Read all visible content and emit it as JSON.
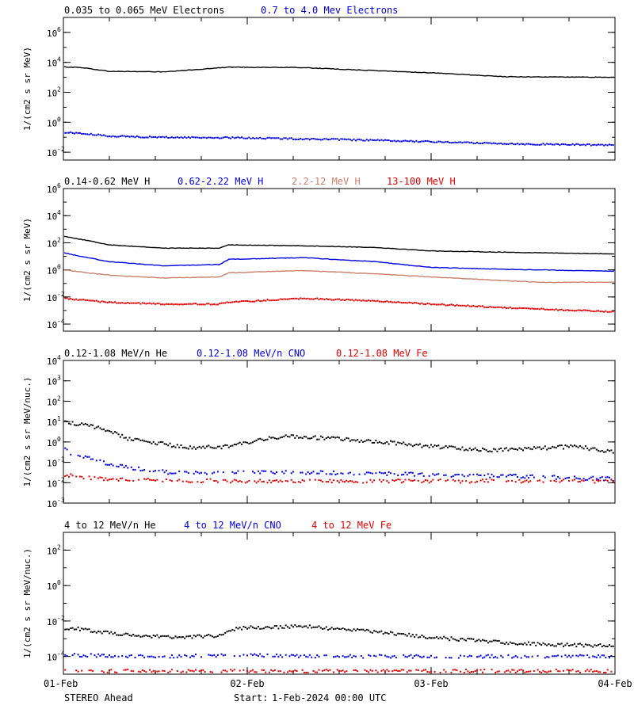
{
  "colors": {
    "black": "#000000",
    "blue": "#0000dd",
    "tan": "#c8806a",
    "red": "#dd0000"
  },
  "footer": {
    "spacecraft": "STEREO Ahead",
    "start_label": "Start:",
    "start_value": "1-Feb-2024 00:00 UTC"
  },
  "x_axis": {
    "type": "time",
    "ticks": [
      "01-Feb",
      "02-Feb",
      "03-Feb",
      "04-Feb"
    ],
    "range": [
      "2024-02-01",
      "2024-02-04"
    ]
  },
  "chart_data": [
    {
      "type": "scatter",
      "ylabel": "1/(cm2 s sr MeV)",
      "yscale": "log",
      "ylim": [
        0.003,
        10000000
      ],
      "yticks": [
        {
          "b": "10",
          "e": "-2",
          "v": 0.01
        },
        {
          "b": "10",
          "e": "0",
          "v": 1
        },
        {
          "b": "10",
          "e": "2",
          "v": 100
        },
        {
          "b": "10",
          "e": "4",
          "v": 10000
        },
        {
          "b": "10",
          "e": "6",
          "v": 1000000
        }
      ],
      "series": [
        {
          "name": "0.035 to 0.065 MeV Electrons",
          "color": "#000000",
          "style": "line",
          "x": [
            0,
            0.1,
            0.25,
            0.45,
            0.55,
            0.9,
            1.3,
            1.5,
            2.0,
            2.4,
            3.0
          ],
          "y": [
            5000,
            4500,
            2500,
            2400,
            2300,
            4800,
            4500,
            3500,
            2000,
            1100,
            1000
          ]
        },
        {
          "name": "0.7 to 4.0 Mev Electrons",
          "color": "#0000dd",
          "style": "scatter",
          "x": [
            0,
            0.05,
            0.25,
            0.5,
            1.0,
            1.5,
            2.0,
            2.5,
            3.0
          ],
          "y": [
            0.2,
            0.2,
            0.12,
            0.1,
            0.09,
            0.07,
            0.05,
            0.035,
            0.03
          ]
        }
      ]
    },
    {
      "type": "scatter",
      "ylabel": "1/(cm2 s sr MeV)",
      "yscale": "log",
      "ylim": [
        3e-05,
        1000000
      ],
      "yticks": [
        {
          "b": "10",
          "e": "-4",
          "v": 0.0001
        },
        {
          "b": "10",
          "e": "-2",
          "v": 0.01
        },
        {
          "b": "10",
          "e": "0",
          "v": 1
        },
        {
          "b": "10",
          "e": "2",
          "v": 100
        },
        {
          "b": "10",
          "e": "4",
          "v": 10000
        },
        {
          "b": "10",
          "e": "6",
          "v": 1000000
        }
      ],
      "series": [
        {
          "name": "0.14-0.62 MeV H",
          "color": "#000000",
          "style": "line",
          "x": [
            0,
            0.04,
            0.25,
            0.55,
            0.85,
            0.9,
            1.3,
            1.7,
            2.0,
            2.4,
            3.0
          ],
          "y": [
            300,
            250,
            70,
            40,
            40,
            70,
            60,
            45,
            25,
            20,
            15
          ]
        },
        {
          "name": "0.62-2.22 MeV H",
          "color": "#0000dd",
          "style": "line",
          "x": [
            0,
            0.04,
            0.25,
            0.55,
            0.85,
            0.9,
            1.3,
            1.7,
            2.0,
            2.4,
            3.0
          ],
          "y": [
            20,
            14,
            4,
            2,
            2.5,
            6,
            8,
            4,
            1.5,
            1.1,
            0.8
          ]
        },
        {
          "name": "2.2-12 MeV H",
          "color": "#c8806a",
          "style": "line",
          "x": [
            0,
            0.25,
            0.55,
            0.85,
            0.9,
            1.3,
            1.7,
            2.0,
            2.4,
            2.6,
            3.0
          ],
          "y": [
            1.0,
            0.4,
            0.25,
            0.3,
            0.6,
            0.9,
            0.5,
            0.3,
            0.16,
            0.12,
            0.12
          ]
        },
        {
          "name": "13-100 MeV H",
          "color": "#dd0000",
          "style": "scatter",
          "x": [
            0,
            0.25,
            0.55,
            0.85,
            0.9,
            1.3,
            1.7,
            2.0,
            2.5,
            3.0
          ],
          "y": [
            0.008,
            0.004,
            0.003,
            0.003,
            0.004,
            0.008,
            0.005,
            0.003,
            0.0014,
            0.0008
          ]
        }
      ]
    },
    {
      "type": "scatter",
      "ylabel": "1/(cm2 s sr MeV/nuc.)",
      "yscale": "log",
      "ylim": [
        0.001,
        10000
      ],
      "yticks": [
        {
          "b": "10",
          "e": "-3",
          "v": 0.001
        },
        {
          "b": "10",
          "e": "-2",
          "v": 0.01
        },
        {
          "b": "10",
          "e": "-1",
          "v": 0.1
        },
        {
          "b": "10",
          "e": "0",
          "v": 1
        },
        {
          "b": "10",
          "e": "1",
          "v": 10
        },
        {
          "b": "10",
          "e": "2",
          "v": 100
        },
        {
          "b": "10",
          "e": "3",
          "v": 1000
        },
        {
          "b": "10",
          "e": "4",
          "v": 10000
        }
      ],
      "series": [
        {
          "name": "0.12-1.08 MeV/n He",
          "color": "#000000",
          "style": "scatter",
          "x": [
            0,
            0.05,
            0.2,
            0.35,
            0.5,
            0.7,
            0.9,
            1.2,
            1.5,
            1.8,
            2.0,
            2.3,
            2.6,
            2.8,
            3.0
          ],
          "y": [
            12,
            8,
            5,
            1.5,
            0.9,
            0.5,
            0.6,
            2.0,
            1.4,
            0.9,
            0.6,
            0.4,
            0.5,
            0.6,
            0.3
          ]
        },
        {
          "name": "0.12-1.08 MeV/n CNO",
          "color": "#0000dd",
          "style": "scatter",
          "x": [
            0,
            0.05,
            0.15,
            0.25,
            0.4,
            0.6,
            1.0,
            1.5,
            2.0,
            2.5,
            3.0
          ],
          "y": [
            0.5,
            0.25,
            0.15,
            0.08,
            0.05,
            0.03,
            0.035,
            0.03,
            0.025,
            0.02,
            0.015
          ]
        },
        {
          "name": "0.12-1.08 MeV Fe",
          "color": "#dd0000",
          "style": "scatter",
          "x": [
            0,
            0.2,
            0.5,
            1.0,
            1.5,
            2.0,
            2.5,
            3.0
          ],
          "y": [
            0.025,
            0.015,
            0.013,
            0.012,
            0.012,
            0.012,
            0.012,
            0.012
          ]
        }
      ]
    },
    {
      "type": "scatter",
      "ylabel": "1/(cm2 s sr MeV/nuc.)",
      "yscale": "log",
      "ylim": [
        1e-05,
        1000
      ],
      "yticks": [
        {
          "b": "10",
          "e": "-4",
          "v": 0.0001
        },
        {
          "b": "10",
          "e": "-2",
          "v": 0.01
        },
        {
          "b": "10",
          "e": "0",
          "v": 1
        },
        {
          "b": "10",
          "e": "2",
          "v": 100
        }
      ],
      "series": [
        {
          "name": "4 to 12 MeV/n He",
          "color": "#000000",
          "style": "scatter",
          "x": [
            0,
            0.1,
            0.3,
            0.6,
            0.85,
            0.95,
            1.3,
            1.7,
            2.0,
            2.4,
            2.7,
            3.0
          ],
          "y": [
            0.004,
            0.0035,
            0.0018,
            0.0012,
            0.0015,
            0.004,
            0.005,
            0.0025,
            0.0012,
            0.0006,
            0.00045,
            0.0004
          ]
        },
        {
          "name": "4 to 12 MeV/n CNO",
          "color": "#0000dd",
          "style": "scatter",
          "x": [
            0,
            0.3,
            0.6,
            0.9,
            1.2,
            1.5,
            1.8,
            2.1,
            2.4,
            2.7,
            3.0
          ],
          "y": [
            0.00012,
            0.00011,
            0.0001,
            0.00012,
            0.00011,
            0.0001,
            0.0001,
            0.0001,
            0.0001,
            0.0001,
            0.0001
          ]
        },
        {
          "name": "4 to 12 MeV Fe",
          "color": "#dd0000",
          "style": "scatter",
          "x": [
            0,
            1.0,
            2.0,
            3.0
          ],
          "y": [
            1.5e-05,
            1.5e-05,
            1.5e-05,
            1.5e-05
          ]
        }
      ]
    }
  ]
}
